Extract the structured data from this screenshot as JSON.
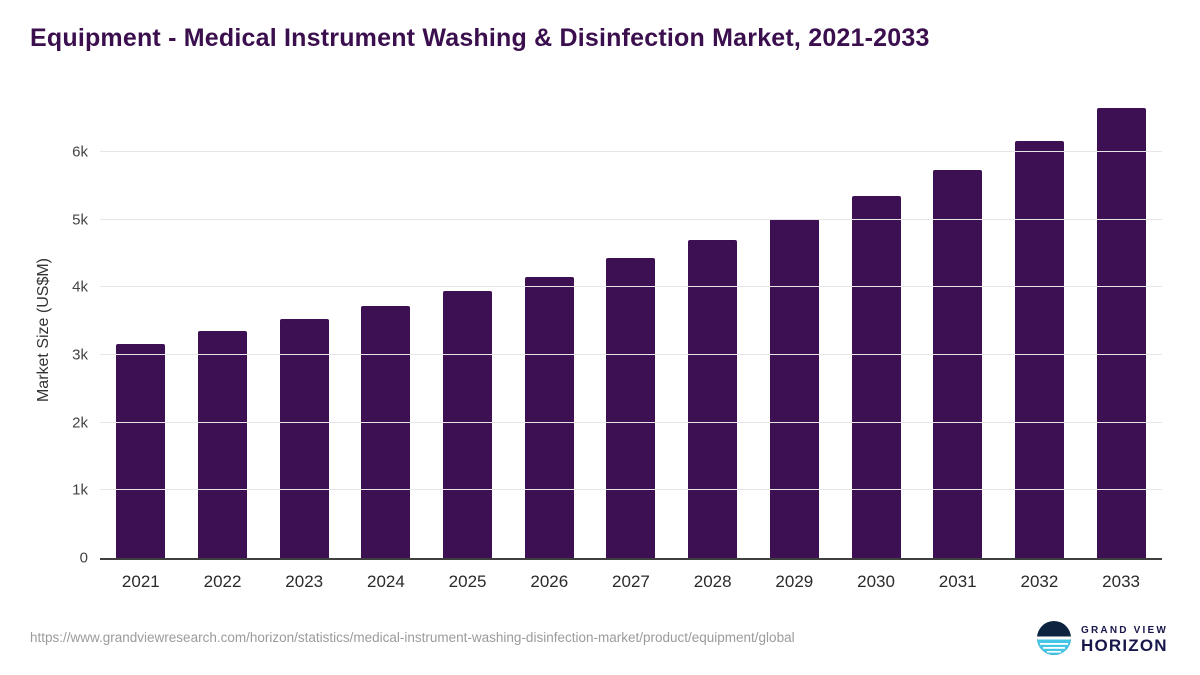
{
  "chart_data": {
    "type": "bar",
    "title": "Equipment - Medical Instrument Washing & Disinfection Market, 2021-2033",
    "categories": [
      "2021",
      "2022",
      "2023",
      "2024",
      "2025",
      "2026",
      "2027",
      "2028",
      "2029",
      "2030",
      "2031",
      "2032",
      "2033"
    ],
    "values": [
      3160,
      3360,
      3540,
      3730,
      3940,
      4160,
      4430,
      4700,
      5010,
      5350,
      5730,
      6160,
      6650
    ],
    "xlabel": "",
    "ylabel": "Market Size (US$M)",
    "ylim": [
      0,
      6800
    ],
    "yticks": [
      {
        "value": 0,
        "label": "0"
      },
      {
        "value": 1000,
        "label": "1k"
      },
      {
        "value": 2000,
        "label": "2k"
      },
      {
        "value": 3000,
        "label": "3k"
      },
      {
        "value": 4000,
        "label": "4k"
      },
      {
        "value": 5000,
        "label": "5k"
      },
      {
        "value": 6000,
        "label": "6k"
      }
    ],
    "grid": true,
    "legend_position": "none",
    "bar_color": "#3c1053"
  },
  "footer": {
    "source_url": "https://www.grandviewresearch.com/horizon/statistics/medical-instrument-washing-disinfection-market/product/equipment/global",
    "logo": {
      "line1": "GRAND VIEW",
      "line2": "HORIZON"
    }
  },
  "colors": {
    "title": "#3b0e4e",
    "bar": "#3c1053",
    "grid": "#e6e6e6",
    "axis": "#3f3f3f",
    "tick_text": "#444444",
    "footer_text": "#9b9b9b",
    "logo_navy": "#0d2440",
    "logo_blue": "#45c6e6"
  }
}
